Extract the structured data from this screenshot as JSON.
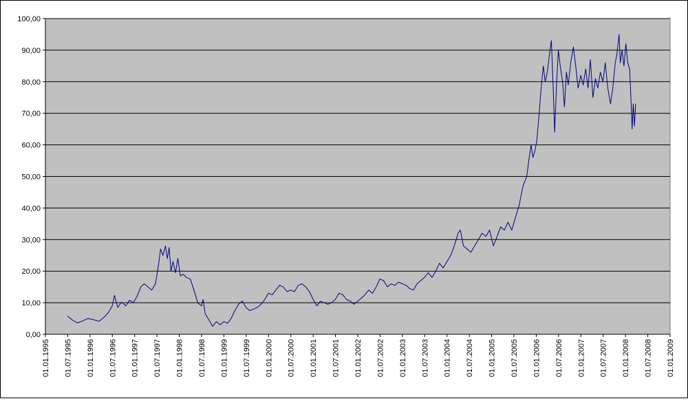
{
  "chart_data": {
    "type": "line",
    "title": "",
    "xlabel": "",
    "ylabel": "",
    "ylim": [
      0,
      100
    ],
    "xlim": [
      "1995-01-01",
      "2009-01-01"
    ],
    "grid": true,
    "legend": "none",
    "colors": {
      "plot_bg": "#c0c0c0",
      "line": "#000080",
      "grid": "#000000"
    },
    "y_ticks": [
      "0,00",
      "10,00",
      "20,00",
      "30,00",
      "40,00",
      "50,00",
      "60,00",
      "70,00",
      "80,00",
      "90,00",
      "100,00"
    ],
    "x_ticks": [
      "01.01.1995",
      "01.07.1995",
      "01.01.1996",
      "01.07.1996",
      "01.01.1997",
      "01.07.1997",
      "01.01.1998",
      "01.07.1998",
      "01.01.1999",
      "01.07.1999",
      "01.01.2000",
      "01.07.2000",
      "01.01.2001",
      "01.07.2001",
      "01.01.2002",
      "01.07.2002",
      "01.01.2003",
      "01.07.2003",
      "01.01.2004",
      "01.07.2004",
      "01.01.2005",
      "01.07.2005",
      "01.01.2006",
      "01.07.2006",
      "01.01.2007",
      "01.07.2007",
      "01.01.2008",
      "01.07.2008",
      "01.01.2009"
    ],
    "series": [
      {
        "values": [
          [
            "1995-07-01",
            5.8
          ],
          [
            "1995-08-10",
            4.5
          ],
          [
            "1995-09-20",
            3.6
          ],
          [
            "1995-11-01",
            4.2
          ],
          [
            "1995-12-15",
            5.0
          ],
          [
            "1996-02-01",
            4.6
          ],
          [
            "1996-03-15",
            4.1
          ],
          [
            "1996-05-01",
            5.6
          ],
          [
            "1996-06-01",
            7.0
          ],
          [
            "1996-07-01",
            9.0
          ],
          [
            "1996-07-20",
            12.3
          ],
          [
            "1996-08-15",
            8.5
          ],
          [
            "1996-09-15",
            10.2
          ],
          [
            "1996-10-20",
            9.0
          ],
          [
            "1996-11-20",
            10.8
          ],
          [
            "1996-12-20",
            10.0
          ],
          [
            "1997-01-20",
            12.0
          ],
          [
            "1997-02-20",
            15.0
          ],
          [
            "1997-03-20",
            16.0
          ],
          [
            "1997-04-20",
            15.0
          ],
          [
            "1997-05-20",
            14.0
          ],
          [
            "1997-06-20",
            16.0
          ],
          [
            "1997-07-15",
            22.0
          ],
          [
            "1997-08-01",
            27.0
          ],
          [
            "1997-08-20",
            25.0
          ],
          [
            "1997-09-10",
            28.0
          ],
          [
            "1997-09-25",
            24.0
          ],
          [
            "1997-10-10",
            27.5
          ],
          [
            "1997-10-25",
            20.0
          ],
          [
            "1997-11-10",
            23.0
          ],
          [
            "1997-12-01",
            19.5
          ],
          [
            "1997-12-20",
            24.0
          ],
          [
            "1998-01-10",
            18.5
          ],
          [
            "1998-02-01",
            19.0
          ],
          [
            "1998-03-01",
            18.0
          ],
          [
            "1998-04-01",
            17.5
          ],
          [
            "1998-05-01",
            14.0
          ],
          [
            "1998-06-01",
            10.0
          ],
          [
            "1998-07-01",
            9.0
          ],
          [
            "1998-07-15",
            11.0
          ],
          [
            "1998-08-01",
            6.5
          ],
          [
            "1998-09-01",
            4.5
          ],
          [
            "1998-10-01",
            2.5
          ],
          [
            "1998-11-01",
            4.0
          ],
          [
            "1998-12-01",
            3.0
          ],
          [
            "1999-01-01",
            4.0
          ],
          [
            "1999-02-01",
            3.5
          ],
          [
            "1999-03-01",
            5.0
          ],
          [
            "1999-04-01",
            7.5
          ],
          [
            "1999-05-01",
            9.5
          ],
          [
            "1999-06-01",
            10.5
          ],
          [
            "1999-07-01",
            8.5
          ],
          [
            "1999-08-01",
            7.5
          ],
          [
            "1999-09-01",
            8.0
          ],
          [
            "1999-10-01",
            8.5
          ],
          [
            "1999-11-01",
            9.5
          ],
          [
            "1999-12-01",
            11.0
          ],
          [
            "2000-01-01",
            13.0
          ],
          [
            "2000-02-01",
            12.5
          ],
          [
            "2000-03-01",
            14.0
          ],
          [
            "2000-04-01",
            15.5
          ],
          [
            "2000-05-01",
            15.0
          ],
          [
            "2000-06-01",
            13.5
          ],
          [
            "2000-07-01",
            14.0
          ],
          [
            "2000-08-01",
            13.5
          ],
          [
            "2000-09-01",
            15.5
          ],
          [
            "2000-10-01",
            16.0
          ],
          [
            "2000-11-01",
            15.0
          ],
          [
            "2000-12-01",
            13.5
          ],
          [
            "2001-01-01",
            11.0
          ],
          [
            "2001-02-01",
            9.0
          ],
          [
            "2001-03-01",
            10.5
          ],
          [
            "2001-04-01",
            10.0
          ],
          [
            "2001-05-01",
            9.5
          ],
          [
            "2001-06-01",
            10.0
          ],
          [
            "2001-07-01",
            11.0
          ],
          [
            "2001-08-01",
            13.0
          ],
          [
            "2001-09-01",
            12.5
          ],
          [
            "2001-10-01",
            11.0
          ],
          [
            "2001-11-01",
            10.5
          ],
          [
            "2001-12-01",
            9.5
          ],
          [
            "2002-01-01",
            10.5
          ],
          [
            "2002-02-01",
            11.5
          ],
          [
            "2002-03-01",
            12.5
          ],
          [
            "2002-04-01",
            14.0
          ],
          [
            "2002-05-01",
            13.0
          ],
          [
            "2002-06-01",
            15.0
          ],
          [
            "2002-07-01",
            17.5
          ],
          [
            "2002-08-01",
            17.0
          ],
          [
            "2002-09-01",
            15.0
          ],
          [
            "2002-10-01",
            16.0
          ],
          [
            "2002-11-01",
            15.5
          ],
          [
            "2002-12-01",
            16.5
          ],
          [
            "2003-01-01",
            16.0
          ],
          [
            "2003-02-01",
            15.5
          ],
          [
            "2003-03-01",
            14.5
          ],
          [
            "2003-04-01",
            14.0
          ],
          [
            "2003-05-01",
            16.0
          ],
          [
            "2003-06-01",
            17.0
          ],
          [
            "2003-07-01",
            18.0
          ],
          [
            "2003-08-01",
            19.5
          ],
          [
            "2003-09-01",
            18.0
          ],
          [
            "2003-10-01",
            20.0
          ],
          [
            "2003-11-01",
            22.5
          ],
          [
            "2003-12-01",
            21.0
          ],
          [
            "2004-01-01",
            23.0
          ],
          [
            "2004-02-01",
            25.0
          ],
          [
            "2004-03-01",
            28.0
          ],
          [
            "2004-04-01",
            32.0
          ],
          [
            "2004-04-20",
            33.0
          ],
          [
            "2004-05-15",
            28.0
          ],
          [
            "2004-06-15",
            27.0
          ],
          [
            "2004-07-15",
            26.0
          ],
          [
            "2004-08-15",
            28.0
          ],
          [
            "2004-09-15",
            30.0
          ],
          [
            "2004-10-15",
            32.0
          ],
          [
            "2004-11-15",
            31.0
          ],
          [
            "2004-12-15",
            33.0
          ],
          [
            "2005-01-15",
            28.0
          ],
          [
            "2005-02-15",
            31.0
          ],
          [
            "2005-03-15",
            34.0
          ],
          [
            "2005-04-15",
            33.0
          ],
          [
            "2005-05-15",
            35.5
          ],
          [
            "2005-06-15",
            33.0
          ],
          [
            "2005-07-15",
            37.0
          ],
          [
            "2005-08-15",
            41.0
          ],
          [
            "2005-09-15",
            47.0
          ],
          [
            "2005-10-15",
            50.0
          ],
          [
            "2005-11-01",
            55.0
          ],
          [
            "2005-11-20",
            60.0
          ],
          [
            "2005-12-05",
            56.0
          ],
          [
            "2005-12-20",
            58.0
          ],
          [
            "2006-01-05",
            61.0
          ],
          [
            "2006-01-25",
            70.0
          ],
          [
            "2006-02-10",
            78.0
          ],
          [
            "2006-02-28",
            85.0
          ],
          [
            "2006-03-15",
            80.0
          ],
          [
            "2006-04-01",
            83.0
          ],
          [
            "2006-04-20",
            89.0
          ],
          [
            "2006-05-05",
            93.0
          ],
          [
            "2006-05-20",
            78.0
          ],
          [
            "2006-06-01",
            64.0
          ],
          [
            "2006-06-15",
            78.0
          ],
          [
            "2006-07-01",
            90.0
          ],
          [
            "2006-07-20",
            84.0
          ],
          [
            "2006-08-05",
            80.0
          ],
          [
            "2006-08-20",
            72.0
          ],
          [
            "2006-09-05",
            83.0
          ],
          [
            "2006-09-20",
            79.0
          ],
          [
            "2006-10-10",
            86.0
          ],
          [
            "2006-11-01",
            91.0
          ],
          [
            "2006-11-20",
            85.0
          ],
          [
            "2006-12-10",
            78.0
          ],
          [
            "2007-01-01",
            82.0
          ],
          [
            "2007-01-20",
            79.0
          ],
          [
            "2007-02-10",
            84.0
          ],
          [
            "2007-03-01",
            78.0
          ],
          [
            "2007-03-20",
            87.0
          ],
          [
            "2007-04-10",
            75.0
          ],
          [
            "2007-05-01",
            81.0
          ],
          [
            "2007-05-20",
            78.0
          ],
          [
            "2007-06-10",
            83.0
          ],
          [
            "2007-07-01",
            80.0
          ],
          [
            "2007-07-20",
            86.0
          ],
          [
            "2007-08-10",
            78.0
          ],
          [
            "2007-09-01",
            73.0
          ],
          [
            "2007-09-20",
            78.0
          ],
          [
            "2007-10-10",
            86.0
          ],
          [
            "2007-10-25",
            89.0
          ],
          [
            "2007-11-10",
            95.0
          ],
          [
            "2007-11-20",
            86.0
          ],
          [
            "2007-12-05",
            90.0
          ],
          [
            "2007-12-20",
            85.0
          ],
          [
            "2008-01-05",
            92.0
          ],
          [
            "2008-01-20",
            86.0
          ],
          [
            "2008-02-05",
            84.0
          ],
          [
            "2008-02-15",
            75.0
          ],
          [
            "2008-02-25",
            65.0
          ],
          [
            "2008-03-05",
            73.0
          ],
          [
            "2008-03-15",
            66.0
          ],
          [
            "2008-03-25",
            73.0
          ]
        ]
      }
    ]
  }
}
